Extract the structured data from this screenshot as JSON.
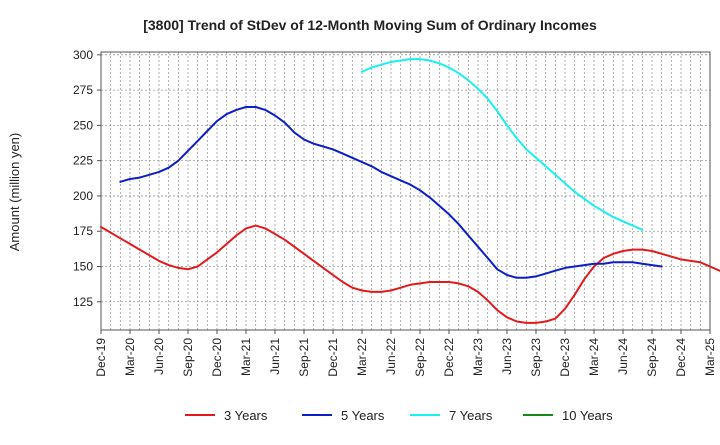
{
  "chart_data": {
    "type": "line",
    "title": "[3800]  Trend of StDev of 12-Month Moving Sum of Ordinary Incomes",
    "xlabel": "",
    "ylabel": "Amount (million yen)",
    "ylim": [
      105,
      302
    ],
    "yticks": [
      125,
      150,
      175,
      200,
      225,
      250,
      275,
      300
    ],
    "xlim": [
      0,
      63
    ],
    "x_tick_labels": [
      "Dec-19",
      "Mar-20",
      "Jun-20",
      "Sep-20",
      "Dec-20",
      "Mar-21",
      "Jun-21",
      "Sep-21",
      "Dec-21",
      "Mar-22",
      "Jun-22",
      "Sep-22",
      "Dec-22",
      "Mar-23",
      "Jun-23",
      "Sep-23",
      "Dec-23",
      "Mar-24",
      "Jun-24",
      "Sep-24",
      "Dec-24",
      "Mar-25"
    ],
    "grid": true,
    "legend_position": "bottom",
    "colors": {
      "3 Years": "#e31a1c",
      "5 Years": "#0c1fc6",
      "7 Years": "#19f0f0",
      "10 Years": "#178a17"
    },
    "series": [
      {
        "name": "3 Years",
        "color": "#e31a1c",
        "start": 0,
        "values": [
          178,
          174,
          170,
          166,
          162,
          158,
          154,
          151,
          149,
          148,
          150,
          155,
          160,
          166,
          172,
          177,
          179,
          177,
          173,
          169,
          164,
          159,
          154,
          149,
          144,
          139,
          135,
          133,
          132,
          132,
          133,
          135,
          137,
          138,
          139,
          139,
          139,
          138,
          136,
          132,
          126,
          119,
          114,
          111,
          110,
          110,
          111,
          113,
          120,
          130,
          141,
          150,
          156,
          159,
          161,
          162,
          162,
          161,
          159,
          157,
          155,
          154,
          153,
          150,
          147,
          144
        ]
      },
      {
        "name": "5 Years",
        "color": "#0c1fc6",
        "start": 2,
        "values": [
          210,
          212,
          213,
          215,
          217,
          220,
          225,
          232,
          239,
          246,
          253,
          258,
          261,
          263,
          263,
          261,
          257,
          252,
          245,
          240,
          237,
          235,
          233,
          230,
          227,
          224,
          221,
          217,
          214,
          211,
          208,
          204,
          199,
          193,
          187,
          180,
          172,
          164,
          156,
          148,
          144,
          142,
          142,
          143,
          145,
          147,
          149,
          150,
          151,
          152,
          152,
          153,
          153,
          153,
          152,
          151,
          150
        ]
      },
      {
        "name": "7 Years",
        "color": "#19f0f0",
        "start": 27,
        "values": [
          288,
          291,
          293,
          295,
          296,
          297,
          297,
          296,
          294,
          291,
          287,
          282,
          276,
          269,
          260,
          250,
          241,
          233,
          227,
          221,
          215,
          209,
          203,
          198,
          193,
          189,
          185,
          182,
          179,
          176
        ]
      },
      {
        "name": "10 Years",
        "color": "#178a17",
        "start": 0,
        "values": []
      }
    ]
  }
}
